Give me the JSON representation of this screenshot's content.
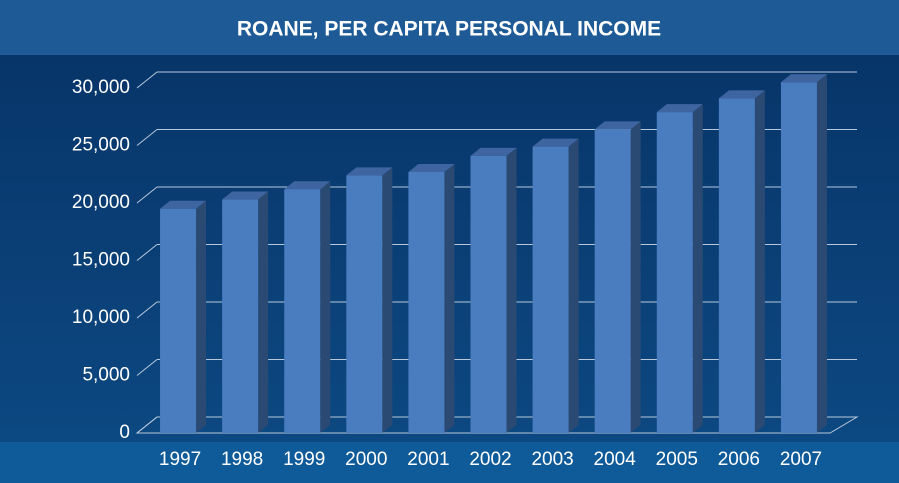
{
  "chart_data": {
    "type": "bar",
    "title": "ROANE, PER CAPITA PERSONAL INCOME",
    "categories": [
      "1997",
      "1998",
      "1999",
      "2000",
      "2001",
      "2002",
      "2003",
      "2004",
      "2005",
      "2006",
      "2007"
    ],
    "values": [
      19500,
      20300,
      21200,
      22400,
      22700,
      24100,
      24900,
      26400,
      27900,
      29100,
      30500
    ],
    "color": "#4a7cc0",
    "ylim": [
      0,
      30000
    ],
    "yticks": [
      0,
      {
        "value": 5000,
        "label": "5,000"
      },
      {
        "value": 10000,
        "label": "10,000"
      },
      {
        "value": 15000,
        "label": "15,000"
      },
      {
        "value": 20000,
        "label": "20,000"
      },
      {
        "value": 25000,
        "label": "25,000"
      },
      {
        "value": 30000,
        "label": "30,000"
      }
    ],
    "grid": true
  }
}
